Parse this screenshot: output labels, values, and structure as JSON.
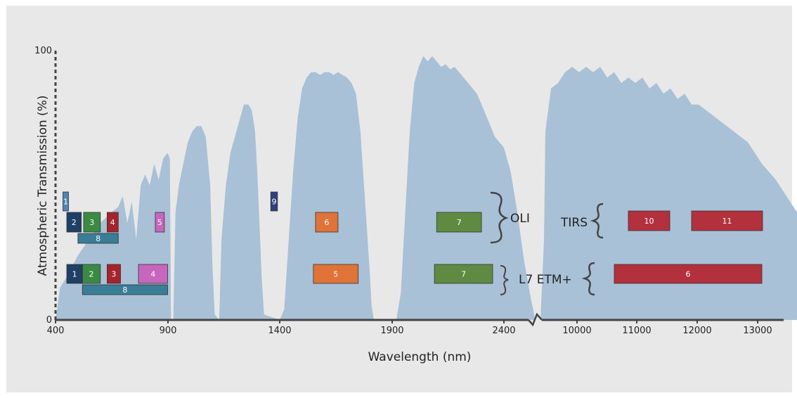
{
  "chart_data": {
    "type": "area",
    "ylabel": "Atmospheric Transmission (%)",
    "xlabel": "Wavelength (nm)",
    "ylim": [
      0,
      100
    ],
    "y_ticks": [
      "0",
      "100"
    ],
    "x_ticks": [
      "400",
      "900",
      "1400",
      "1900",
      "2400",
      "10000",
      "11000",
      "12000",
      "13000"
    ],
    "axis_break_between": [
      "2400",
      "10000"
    ],
    "colors": {
      "transmission": "#a9c1d6",
      "axis": "#333333",
      "text": "#222222",
      "panel": "#e8e8e8"
    },
    "transmission_segments": [
      {
        "range": "400-2600nm",
        "points": [
          [
            400,
            0
          ],
          [
            420,
            12
          ],
          [
            450,
            16
          ],
          [
            500,
            24
          ],
          [
            550,
            30
          ],
          [
            600,
            36
          ],
          [
            650,
            40
          ],
          [
            680,
            42
          ],
          [
            700,
            46
          ],
          [
            720,
            36
          ],
          [
            740,
            44
          ],
          [
            760,
            30
          ],
          [
            780,
            50
          ],
          [
            800,
            54
          ],
          [
            820,
            50
          ],
          [
            840,
            58
          ],
          [
            860,
            52
          ],
          [
            880,
            60
          ],
          [
            900,
            62
          ],
          [
            910,
            60
          ],
          [
            915,
            0
          ],
          [
            925,
            0
          ],
          [
            935,
            40
          ],
          [
            950,
            50
          ],
          [
            970,
            58
          ],
          [
            990,
            66
          ],
          [
            1010,
            70
          ],
          [
            1030,
            72
          ],
          [
            1050,
            72
          ],
          [
            1070,
            68
          ],
          [
            1090,
            50
          ],
          [
            1100,
            20
          ],
          [
            1110,
            2
          ],
          [
            1130,
            0
          ],
          [
            1140,
            30
          ],
          [
            1160,
            50
          ],
          [
            1180,
            62
          ],
          [
            1200,
            68
          ],
          [
            1220,
            74
          ],
          [
            1240,
            80
          ],
          [
            1260,
            80
          ],
          [
            1275,
            78
          ],
          [
            1290,
            70
          ],
          [
            1300,
            55
          ],
          [
            1310,
            35
          ],
          [
            1320,
            15
          ],
          [
            1330,
            2
          ],
          [
            1400,
            0
          ],
          [
            1420,
            4
          ],
          [
            1440,
            30
          ],
          [
            1460,
            55
          ],
          [
            1480,
            75
          ],
          [
            1500,
            86
          ],
          [
            1520,
            90
          ],
          [
            1540,
            92
          ],
          [
            1560,
            92
          ],
          [
            1580,
            91
          ],
          [
            1600,
            92
          ],
          [
            1620,
            92
          ],
          [
            1640,
            91
          ],
          [
            1660,
            92
          ],
          [
            1680,
            91
          ],
          [
            1700,
            90
          ],
          [
            1720,
            88
          ],
          [
            1740,
            84
          ],
          [
            1760,
            70
          ],
          [
            1780,
            45
          ],
          [
            1800,
            20
          ],
          [
            1810,
            5
          ],
          [
            1820,
            0
          ],
          [
            1920,
            0
          ],
          [
            1940,
            10
          ],
          [
            1960,
            40
          ],
          [
            1980,
            70
          ],
          [
            2000,
            88
          ],
          [
            2020,
            94
          ],
          [
            2040,
            98
          ],
          [
            2060,
            96
          ],
          [
            2080,
            98
          ],
          [
            2100,
            96
          ],
          [
            2120,
            94
          ],
          [
            2140,
            95
          ],
          [
            2160,
            93
          ],
          [
            2180,
            94
          ],
          [
            2200,
            92
          ],
          [
            2220,
            90
          ],
          [
            2240,
            88
          ],
          [
            2260,
            86
          ],
          [
            2280,
            84
          ],
          [
            2300,
            80
          ],
          [
            2320,
            76
          ],
          [
            2340,
            72
          ],
          [
            2360,
            68
          ],
          [
            2380,
            66
          ],
          [
            2400,
            64
          ],
          [
            2430,
            55
          ],
          [
            2460,
            40
          ],
          [
            2490,
            22
          ],
          [
            2520,
            8
          ],
          [
            2540,
            0
          ]
        ]
      },
      {
        "range": "9400-13400nm",
        "points": [
          [
            9350,
            0
          ],
          [
            9400,
            30
          ],
          [
            9420,
            70
          ],
          [
            9500,
            86
          ],
          [
            9600,
            88
          ],
          [
            9700,
            92
          ],
          [
            9800,
            94
          ],
          [
            9900,
            92
          ],
          [
            10000,
            94
          ],
          [
            10100,
            92
          ],
          [
            10200,
            94
          ],
          [
            10300,
            90
          ],
          [
            10400,
            92
          ],
          [
            10500,
            88
          ],
          [
            10600,
            90
          ],
          [
            10700,
            88
          ],
          [
            10800,
            90
          ],
          [
            10900,
            86
          ],
          [
            11000,
            88
          ],
          [
            11100,
            84
          ],
          [
            11200,
            86
          ],
          [
            11300,
            82
          ],
          [
            11400,
            84
          ],
          [
            11500,
            80
          ],
          [
            11600,
            80
          ],
          [
            11700,
            78
          ],
          [
            11800,
            76
          ],
          [
            11900,
            74
          ],
          [
            12000,
            72
          ],
          [
            12100,
            70
          ],
          [
            12200,
            68
          ],
          [
            12300,
            66
          ],
          [
            12400,
            62
          ],
          [
            12500,
            58
          ],
          [
            12600,
            55
          ],
          [
            12700,
            52
          ],
          [
            12800,
            48
          ],
          [
            12900,
            44
          ],
          [
            13000,
            40
          ],
          [
            13100,
            35
          ],
          [
            13200,
            25
          ],
          [
            13250,
            15
          ],
          [
            13300,
            0
          ]
        ]
      }
    ],
    "group_labels": {
      "oli": "OLI",
      "etm": "L7 ETM+",
      "tirs": "TIRS"
    },
    "bands": {
      "oli": [
        {
          "label": "1",
          "from": 433,
          "to": 453,
          "row": "top",
          "color": "#4f86b8"
        },
        {
          "label": "2",
          "from": 450,
          "to": 515,
          "row": "main",
          "color": "#1f3f66"
        },
        {
          "label": "3",
          "from": 525,
          "to": 600,
          "row": "main",
          "color": "#3a8a43"
        },
        {
          "label": "4",
          "from": 630,
          "to": 680,
          "row": "main",
          "color": "#a7222b"
        },
        {
          "label": "5",
          "from": 845,
          "to": 885,
          "row": "main",
          "color": "#c766bd"
        },
        {
          "label": "8",
          "from": 500,
          "to": 680,
          "row": "sub",
          "color": "#3a7d96"
        },
        {
          "label": "9",
          "from": 1360,
          "to": 1390,
          "row": "top",
          "color": "#2f3f80"
        },
        {
          "label": "6",
          "from": 1560,
          "to": 1660,
          "row": "main",
          "color": "#e07438"
        },
        {
          "label": "7",
          "from": 2100,
          "to": 2300,
          "row": "main",
          "color": "#5f8a42"
        }
      ],
      "etm": [
        {
          "label": "1",
          "from": 450,
          "to": 520,
          "row": "main",
          "color": "#1f3f66"
        },
        {
          "label": "2",
          "from": 520,
          "to": 600,
          "row": "main",
          "color": "#3a8a43"
        },
        {
          "label": "3",
          "from": 630,
          "to": 690,
          "row": "main",
          "color": "#a7222b"
        },
        {
          "label": "4",
          "from": 770,
          "to": 900,
          "row": "main",
          "color": "#c766bd"
        },
        {
          "label": "8",
          "from": 520,
          "to": 900,
          "row": "sub",
          "color": "#3a7d96"
        },
        {
          "label": "5",
          "from": 1550,
          "to": 1750,
          "row": "main",
          "color": "#e07438"
        },
        {
          "label": "7",
          "from": 2090,
          "to": 2350,
          "row": "main",
          "color": "#5f8a42"
        }
      ],
      "tirs": [
        {
          "label": "10",
          "from": 10600,
          "to": 11190,
          "row": "main",
          "color": "#b3313c"
        },
        {
          "label": "11",
          "from": 11500,
          "to": 12510,
          "row": "main",
          "color": "#b3313c"
        }
      ],
      "etm_thermal": [
        {
          "label": "6",
          "from": 10400,
          "to": 12500,
          "row": "main",
          "color": "#b3313c"
        }
      ]
    }
  }
}
